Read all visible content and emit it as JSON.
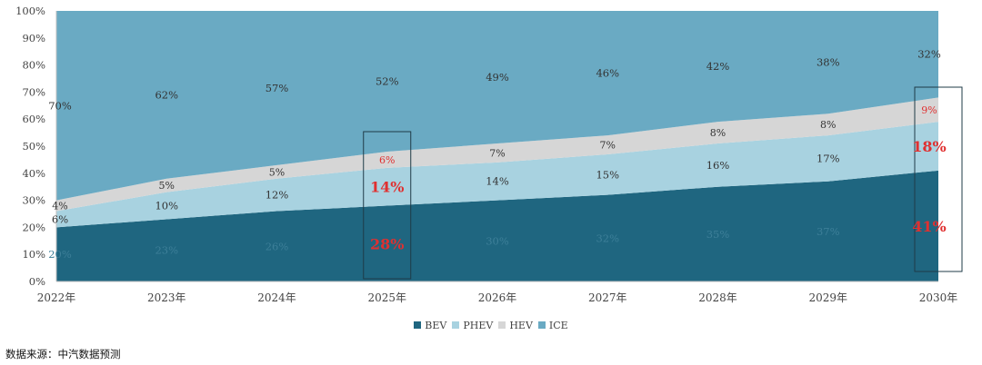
{
  "chart_data": {
    "type": "area",
    "stacked": true,
    "x": [
      "2022年",
      "2023年",
      "2024年",
      "2025年",
      "2026年",
      "2027年",
      "2028年",
      "2029年",
      "2030年"
    ],
    "yticks": [
      "0%",
      "10%",
      "20%",
      "30%",
      "40%",
      "50%",
      "60%",
      "70%",
      "80%",
      "90%",
      "100%"
    ],
    "ylim": [
      0,
      100
    ],
    "series": [
      {
        "name": "BEV",
        "color": "#1f6680",
        "values": [
          20,
          23,
          26,
          28,
          30,
          32,
          35,
          37,
          41
        ],
        "labels": [
          "20%",
          "23%",
          "26%",
          "28%",
          "30%",
          "32%",
          "35%",
          "37%",
          "41%"
        ]
      },
      {
        "name": "PHEV",
        "color": "#a8d2e0",
        "values": [
          6,
          10,
          12,
          14,
          14,
          15,
          16,
          17,
          18
        ],
        "labels": [
          "6%",
          "10%",
          "12%",
          "14%",
          "14%",
          "15%",
          "16%",
          "17%",
          "18%"
        ]
      },
      {
        "name": "HEV",
        "color": "#d6d6d6",
        "values": [
          4,
          5,
          5,
          6,
          7,
          7,
          8,
          8,
          9
        ],
        "labels": [
          "4%",
          "5%",
          "5%",
          "6%",
          "7%",
          "7%",
          "8%",
          "8%",
          "9%"
        ]
      },
      {
        "name": "ICE",
        "color": "#6aaac3",
        "values": [
          70,
          62,
          57,
          52,
          49,
          46,
          42,
          38,
          32
        ],
        "labels": [
          "70%",
          "62%",
          "57%",
          "52%",
          "49%",
          "46%",
          "42%",
          "38%",
          "32%"
        ]
      }
    ],
    "highlight_color": "#e03030",
    "highlighted_categories": [
      "2025年",
      "2030年"
    ],
    "legend": "bottom-center",
    "grid": false
  },
  "source_note": "数据来源：中汽数据预测"
}
